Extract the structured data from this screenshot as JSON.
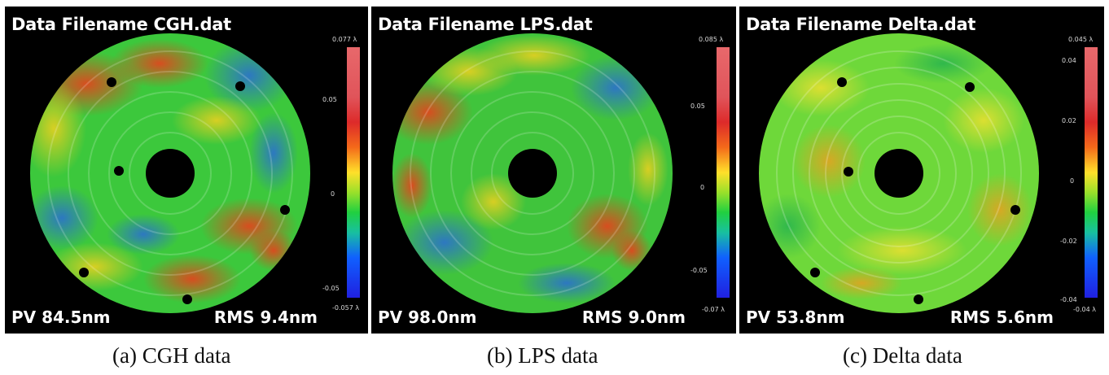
{
  "panels": [
    {
      "title": "Data Filename CGH.dat",
      "pv": "PV 84.5nm",
      "rms": "RMS 9.4nm",
      "colorbar_max": "0.077 λ",
      "colorbar_min": "-0.057 λ",
      "ticks": [
        "0.05",
        "0",
        "-0.05"
      ],
      "caption": "(a) CGH data"
    },
    {
      "title": "Data Filename LPS.dat",
      "pv": "PV 98.0nm",
      "rms": "RMS 9.0nm",
      "colorbar_max": "0.085 λ",
      "colorbar_min": "-0.07 λ",
      "ticks": [
        "0.05",
        "0",
        "-0.05"
      ],
      "caption": "(b) LPS data"
    },
    {
      "title": "Data Filename Delta.dat",
      "pv": "PV 53.8nm",
      "rms": "RMS 5.6nm",
      "colorbar_max": "0.045 λ",
      "colorbar_min": "-0.04 λ",
      "ticks": [
        "0.04",
        "0.02",
        "0",
        "-0.02",
        "-0.04"
      ],
      "caption": "(c) Delta data"
    }
  ],
  "colors": {
    "background": "#000000",
    "map_red": "#e8401c",
    "map_yellow": "#e8d020",
    "map_green": "#38c83a",
    "map_blue": "#2a6ad8"
  }
}
